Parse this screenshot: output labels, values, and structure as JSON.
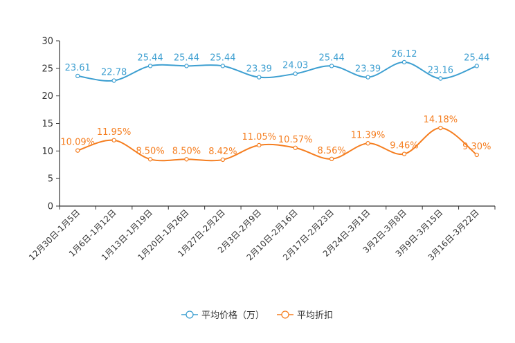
{
  "chart_data": {
    "type": "line",
    "categories": [
      "12月30日-1月5日",
      "1月6日-1月12日",
      "1月13日-1月19日",
      "1月20日-1月26日",
      "1月27日-2月2日",
      "2月3日-2月9日",
      "2月10日-2月16日",
      "2月17日-2月23日",
      "2月24日-3月1日",
      "3月2日-3月8日",
      "3月9日-3月15日",
      "3月16日-3月22日"
    ],
    "ylim": [
      0,
      30
    ],
    "yticks": [
      0,
      5,
      10,
      15,
      20,
      25,
      30
    ],
    "smooth": true,
    "series": [
      {
        "name": "平均价格（万）",
        "color": "#3d9fd1",
        "values": [
          23.61,
          22.78,
          25.44,
          25.44,
          25.44,
          23.39,
          24.03,
          25.44,
          23.39,
          26.12,
          23.16,
          25.44
        ],
        "labels": [
          "23.61",
          "22.78",
          "25.44",
          "25.44",
          "25.44",
          "23.39",
          "24.03",
          "25.44",
          "23.39",
          "26.12",
          "23.16",
          "25.44"
        ]
      },
      {
        "name": "平均折扣",
        "color": "#f57e20",
        "values": [
          10.09,
          11.95,
          8.5,
          8.5,
          8.42,
          11.05,
          10.57,
          8.56,
          11.39,
          9.46,
          14.18,
          9.3
        ],
        "labels": [
          "10.09%",
          "11.95%",
          "8.50%",
          "8.50%",
          "8.42%",
          "11.05%",
          "10.57%",
          "8.56%",
          "11.39%",
          "9.46%",
          "14.18%",
          "9.30%"
        ]
      }
    ],
    "legend_position": "bottom-center"
  }
}
